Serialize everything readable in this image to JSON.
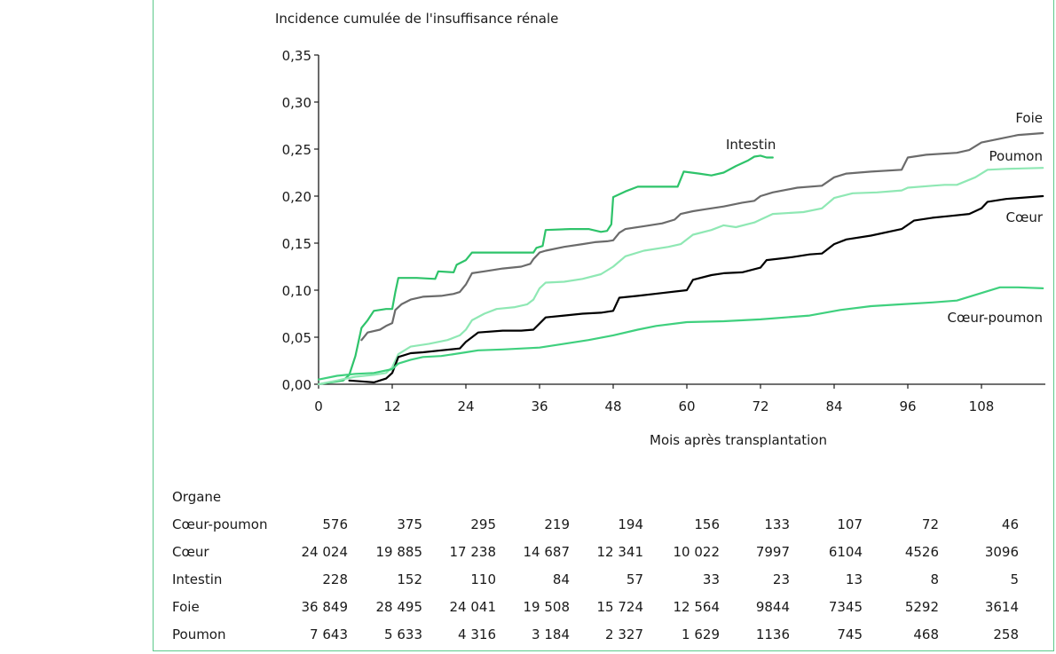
{
  "chart_data": {
    "type": "line",
    "ylabel": "Incidence cumulée de l'insuffisance rénale",
    "xlabel": "Mois après transplantation",
    "xlim": [
      0,
      118
    ],
    "ylim": [
      0,
      0.35
    ],
    "x_ticks": [
      0,
      12,
      24,
      36,
      48,
      60,
      72,
      84,
      96,
      108
    ],
    "y_ticks": [
      0,
      0.05,
      0.1,
      0.15,
      0.2,
      0.25,
      0.3,
      0.35
    ],
    "x_tick_labels": [
      "0",
      "12",
      "24",
      "36",
      "48",
      "60",
      "72",
      "84",
      "96",
      "108"
    ],
    "y_tick_labels": [
      "0,00",
      "0,05",
      "0,10",
      "0,15",
      "0,20",
      "0,25",
      "0,30",
      "0,35"
    ],
    "grid": false,
    "series": [
      {
        "name": "Intestin",
        "color": "#2ec36a",
        "width": 2.2,
        "points": [
          [
            0,
            0.0
          ],
          [
            2,
            0.002
          ],
          [
            4,
            0.004
          ],
          [
            5,
            0.01
          ],
          [
            6,
            0.03
          ],
          [
            7,
            0.06
          ],
          [
            8,
            0.068
          ],
          [
            9,
            0.078
          ],
          [
            11,
            0.08
          ],
          [
            12,
            0.08
          ],
          [
            12.5,
            0.098
          ],
          [
            13,
            0.113
          ],
          [
            16,
            0.113
          ],
          [
            19,
            0.112
          ],
          [
            19.5,
            0.12
          ],
          [
            22,
            0.119
          ],
          [
            22.5,
            0.127
          ],
          [
            24,
            0.132
          ],
          [
            25,
            0.14
          ],
          [
            30,
            0.14
          ],
          [
            35,
            0.14
          ],
          [
            35.5,
            0.145
          ],
          [
            36.5,
            0.147
          ],
          [
            37,
            0.164
          ],
          [
            41,
            0.165
          ],
          [
            44,
            0.165
          ],
          [
            46,
            0.162
          ],
          [
            47,
            0.163
          ],
          [
            47.7,
            0.17
          ],
          [
            48,
            0.199
          ],
          [
            50,
            0.205
          ],
          [
            52,
            0.21
          ],
          [
            56,
            0.21
          ],
          [
            58.5,
            0.21
          ],
          [
            59.5,
            0.226
          ],
          [
            62,
            0.224
          ],
          [
            64,
            0.222
          ],
          [
            66,
            0.225
          ],
          [
            68,
            0.232
          ],
          [
            70,
            0.238
          ],
          [
            71,
            0.242
          ],
          [
            72,
            0.243
          ],
          [
            73,
            0.241
          ],
          [
            74,
            0.241
          ]
        ]
      },
      {
        "name": "Foie",
        "color": "#6b6b6b",
        "width": 2.2,
        "points": [
          [
            7,
            0.047
          ],
          [
            8,
            0.055
          ],
          [
            10,
            0.058
          ],
          [
            11,
            0.062
          ],
          [
            12,
            0.065
          ],
          [
            12.5,
            0.079
          ],
          [
            13.5,
            0.085
          ],
          [
            15,
            0.09
          ],
          [
            17,
            0.093
          ],
          [
            20,
            0.094
          ],
          [
            22,
            0.096
          ],
          [
            23,
            0.098
          ],
          [
            24,
            0.106
          ],
          [
            25,
            0.118
          ],
          [
            27,
            0.12
          ],
          [
            30,
            0.123
          ],
          [
            33,
            0.125
          ],
          [
            34.5,
            0.128
          ],
          [
            35,
            0.133
          ],
          [
            36,
            0.14
          ],
          [
            37,
            0.142
          ],
          [
            40,
            0.146
          ],
          [
            43,
            0.149
          ],
          [
            45,
            0.151
          ],
          [
            47,
            0.152
          ],
          [
            48,
            0.153
          ],
          [
            49,
            0.161
          ],
          [
            50,
            0.165
          ],
          [
            53,
            0.168
          ],
          [
            56,
            0.171
          ],
          [
            58,
            0.175
          ],
          [
            59,
            0.181
          ],
          [
            61,
            0.184
          ],
          [
            63,
            0.186
          ],
          [
            66,
            0.189
          ],
          [
            69,
            0.193
          ],
          [
            71,
            0.195
          ],
          [
            72,
            0.2
          ],
          [
            74,
            0.204
          ],
          [
            78,
            0.209
          ],
          [
            82,
            0.211
          ],
          [
            84,
            0.22
          ],
          [
            86,
            0.224
          ],
          [
            90,
            0.226
          ],
          [
            95,
            0.228
          ],
          [
            96,
            0.241
          ],
          [
            99,
            0.244
          ],
          [
            104,
            0.246
          ],
          [
            106,
            0.249
          ],
          [
            108,
            0.257
          ],
          [
            111,
            0.261
          ],
          [
            114,
            0.265
          ],
          [
            118,
            0.267
          ]
        ]
      },
      {
        "name": "Poumon",
        "color": "#8fe8b4",
        "width": 2.2,
        "points": [
          [
            0,
            0.0
          ],
          [
            3,
            0.004
          ],
          [
            6,
            0.008
          ],
          [
            9,
            0.01
          ],
          [
            11,
            0.012
          ],
          [
            12,
            0.018
          ],
          [
            13,
            0.032
          ],
          [
            15,
            0.04
          ],
          [
            18,
            0.043
          ],
          [
            21,
            0.047
          ],
          [
            23,
            0.052
          ],
          [
            24,
            0.058
          ],
          [
            25,
            0.068
          ],
          [
            27,
            0.075
          ],
          [
            29,
            0.08
          ],
          [
            32,
            0.082
          ],
          [
            34,
            0.085
          ],
          [
            35,
            0.09
          ],
          [
            36,
            0.102
          ],
          [
            37,
            0.108
          ],
          [
            40,
            0.109
          ],
          [
            43,
            0.112
          ],
          [
            46,
            0.117
          ],
          [
            48,
            0.125
          ],
          [
            50,
            0.136
          ],
          [
            53,
            0.142
          ],
          [
            57,
            0.146
          ],
          [
            59,
            0.149
          ],
          [
            61,
            0.159
          ],
          [
            64,
            0.164
          ],
          [
            66,
            0.169
          ],
          [
            68,
            0.167
          ],
          [
            71,
            0.172
          ],
          [
            72,
            0.175
          ],
          [
            74,
            0.181
          ],
          [
            79,
            0.183
          ],
          [
            82,
            0.187
          ],
          [
            84,
            0.198
          ],
          [
            87,
            0.203
          ],
          [
            91,
            0.204
          ],
          [
            95,
            0.206
          ],
          [
            96,
            0.209
          ],
          [
            100,
            0.211
          ],
          [
            102,
            0.212
          ],
          [
            104,
            0.212
          ],
          [
            107,
            0.22
          ],
          [
            109,
            0.228
          ],
          [
            112,
            0.229
          ],
          [
            118,
            0.23
          ]
        ]
      },
      {
        "name": "Cœur",
        "color": "#000000",
        "width": 2.2,
        "points": [
          [
            5,
            0.004
          ],
          [
            7,
            0.003
          ],
          [
            9,
            0.002
          ],
          [
            11,
            0.006
          ],
          [
            12,
            0.012
          ],
          [
            13,
            0.029
          ],
          [
            15,
            0.033
          ],
          [
            17,
            0.034
          ],
          [
            20,
            0.036
          ],
          [
            23,
            0.038
          ],
          [
            24,
            0.045
          ],
          [
            26,
            0.055
          ],
          [
            30,
            0.057
          ],
          [
            33,
            0.057
          ],
          [
            35,
            0.058
          ],
          [
            37,
            0.071
          ],
          [
            40,
            0.073
          ],
          [
            43,
            0.075
          ],
          [
            46,
            0.076
          ],
          [
            48,
            0.078
          ],
          [
            49,
            0.092
          ],
          [
            52,
            0.094
          ],
          [
            56,
            0.097
          ],
          [
            60,
            0.1
          ],
          [
            61,
            0.111
          ],
          [
            64,
            0.116
          ],
          [
            66,
            0.118
          ],
          [
            69,
            0.119
          ],
          [
            72,
            0.124
          ],
          [
            73,
            0.132
          ],
          [
            77,
            0.135
          ],
          [
            80,
            0.138
          ],
          [
            82,
            0.139
          ],
          [
            84,
            0.149
          ],
          [
            86,
            0.154
          ],
          [
            90,
            0.158
          ],
          [
            95,
            0.165
          ],
          [
            97,
            0.174
          ],
          [
            100,
            0.177
          ],
          [
            103,
            0.179
          ],
          [
            106,
            0.181
          ],
          [
            108,
            0.187
          ],
          [
            109,
            0.194
          ],
          [
            112,
            0.197
          ],
          [
            118,
            0.2
          ]
        ]
      },
      {
        "name": "Cœur-poumon",
        "color": "#3fd07e",
        "width": 2.2,
        "points": [
          [
            0,
            0.005
          ],
          [
            3,
            0.009
          ],
          [
            6,
            0.011
          ],
          [
            9,
            0.012
          ],
          [
            12,
            0.016
          ],
          [
            13,
            0.022
          ],
          [
            15,
            0.026
          ],
          [
            17,
            0.029
          ],
          [
            20,
            0.03
          ],
          [
            24,
            0.034
          ],
          [
            26,
            0.036
          ],
          [
            30,
            0.037
          ],
          [
            36,
            0.039
          ],
          [
            40,
            0.043
          ],
          [
            44,
            0.047
          ],
          [
            48,
            0.052
          ],
          [
            52,
            0.058
          ],
          [
            55,
            0.062
          ],
          [
            60,
            0.066
          ],
          [
            66,
            0.067
          ],
          [
            72,
            0.069
          ],
          [
            80,
            0.073
          ],
          [
            85,
            0.079
          ],
          [
            90,
            0.083
          ],
          [
            95,
            0.085
          ],
          [
            100,
            0.087
          ],
          [
            104,
            0.089
          ],
          [
            108,
            0.097
          ],
          [
            111,
            0.103
          ],
          [
            114,
            0.103
          ],
          [
            118,
            0.102
          ]
        ]
      }
    ]
  },
  "table": {
    "header": "Organe",
    "rows": [
      {
        "name": "Cœur-poumon",
        "values": [
          "576",
          "375",
          "295",
          "219",
          "194",
          "156",
          "133",
          "107",
          "72",
          "46"
        ]
      },
      {
        "name": "Cœur",
        "values": [
          "24 024",
          "19 885",
          "17 238",
          "14 687",
          "12 341",
          "10 022",
          "7997",
          "6104",
          "4526",
          "3096"
        ]
      },
      {
        "name": "Intestin",
        "values": [
          "228",
          "152",
          "110",
          "84",
          "57",
          "33",
          "23",
          "13",
          "8",
          "5"
        ]
      },
      {
        "name": "Foie",
        "values": [
          "36 849",
          "28 495",
          "24 041",
          "19 508",
          "15 724",
          "12 564",
          "9844",
          "7345",
          "5292",
          "3614"
        ]
      },
      {
        "name": "Poumon",
        "values": [
          "7 643",
          "5 633",
          "4 316",
          "3 184",
          "2 327",
          "1 629",
          "1136",
          "745",
          "468",
          "258"
        ]
      }
    ]
  }
}
